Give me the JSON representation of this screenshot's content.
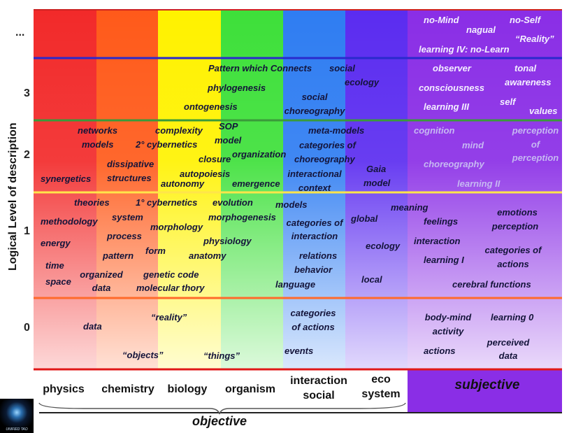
{
  "axis": {
    "y_label": "Logical Level of description",
    "ellipsis": "..."
  },
  "level_numbers": [
    "3",
    "2",
    "1",
    "0"
  ],
  "columns": [
    {
      "id": "physics",
      "label": "physics",
      "color": "#f22a2a"
    },
    {
      "id": "chemistry",
      "label": "chemistry",
      "color": "#ff5a1a"
    },
    {
      "id": "biology",
      "label": "biology",
      "color": "#fff200"
    },
    {
      "id": "organism",
      "label": "organism",
      "color": "#3ee03a"
    },
    {
      "id": "interaction",
      "label": "interaction social",
      "color": "#2f7df2"
    },
    {
      "id": "eco",
      "label": "eco system",
      "color": "#5b2cf0"
    },
    {
      "id": "subjective",
      "label": "subjective",
      "color": "#8a2ee6"
    }
  ],
  "column_labels": {
    "physics": "physics",
    "chemistry": "chemistry",
    "biology": "biology",
    "organism": "organism",
    "interaction_1": "interaction",
    "interaction_2": "social",
    "eco_1": "eco",
    "eco_2": "system",
    "subjective": "subjective",
    "objective": "objective"
  },
  "band_line_colors": [
    "#2a2acc",
    "#3a9a3a",
    "#ffe54a",
    "#ff6a2a",
    "#e01818"
  ],
  "logo_text": "UNIFIED TAO",
  "terms": {
    "no_mind": "no-Mind",
    "nagual": "nagual",
    "no_self": "no-Self",
    "reality_top": "“Reality”",
    "learning_iv": "learning IV: no-Learn",
    "pattern_connects": "Pattern which Connects",
    "social_ecology_1": "social",
    "social_ecology_2": "ecology",
    "phylogenesis": "phylogenesis",
    "social_choreo_1": "social",
    "social_choreo_2": "choreography",
    "ontogenesis": "ontogenesis",
    "observer": "observer",
    "tonal": "tonal",
    "consciousness": "consciousness",
    "awareness": "awareness",
    "self": "self",
    "learning_iii": "learning III",
    "values": "values",
    "networks": "networks",
    "models_2": "models",
    "complexity": "complexity",
    "second_cybernetics": "2° cybernetics",
    "sop_1": "SOP",
    "sop_2": "model",
    "closure": "closure",
    "organization": "organization",
    "meta_models": "meta-models",
    "categories_of": "categories of",
    "choreography": "choreography",
    "dissipative_1": "dissipative",
    "dissipative_2": "structures",
    "synergetics": "synergetics",
    "autopoiesis": "autopoiesis",
    "autonomy": "autonomy",
    "emergence": "emergence",
    "interactional_1": "interactional",
    "interactional_2": "context",
    "gaia_1": "Gaia",
    "gaia_2": "model",
    "cognition": "cognition",
    "perception_of_1": "perception",
    "perception_of_2": "of",
    "perception_of_3": "perception",
    "mind": "mind",
    "choreography_s": "choreography",
    "learning_ii": "learning II",
    "theories": "theories",
    "first_cybernetics": "1° cybernetics",
    "evolution": "evolution",
    "models_1": "models",
    "methodology": "methodology",
    "system": "system",
    "morphogenesis": "morphogenesis",
    "cat_interaction_1": "categories of",
    "cat_interaction_2": "interaction",
    "global": "global",
    "meaning": "meaning",
    "emotions_1": "emotions",
    "emotions_2": "perception",
    "morphology": "morphology",
    "energy": "energy",
    "process": "process",
    "physiology": "physiology",
    "feelings": "feelings",
    "ecology": "ecology",
    "interaction_s": "interaction",
    "pattern": "pattern",
    "form": "form",
    "anatomy": "anatomy",
    "relations": "relations",
    "cat_actions_1": "categories of",
    "cat_actions_2": "actions",
    "learning_i": "learning I",
    "time": "time",
    "space": "space",
    "organized_1": "organized",
    "organized_2": "data",
    "genetic_code": "genetic code",
    "molecular": "molecular thory",
    "behavior": "behavior",
    "language": "language",
    "local": "local",
    "cerebral": "cerebral functions",
    "data_0": "data",
    "reality_0": "“reality”",
    "cat_actions0_1": "categories",
    "cat_actions0_2": "of actions",
    "body_mind_1": "body-mind",
    "body_mind_2": "activity",
    "learning_0": "learning 0",
    "objects": "“objects”",
    "things": "“things”",
    "events": "events",
    "actions": "actions",
    "perceived_1": "perceived",
    "perceived_2": "data"
  }
}
